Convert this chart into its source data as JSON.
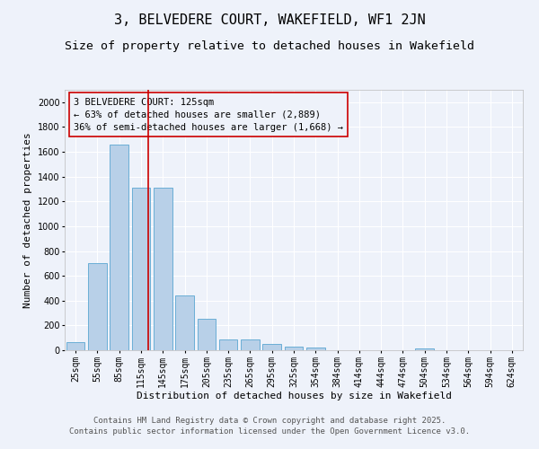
{
  "title": "3, BELVEDERE COURT, WAKEFIELD, WF1 2JN",
  "subtitle": "Size of property relative to detached houses in Wakefield",
  "xlabel": "Distribution of detached houses by size in Wakefield",
  "ylabel": "Number of detached properties",
  "footer_line1": "Contains HM Land Registry data © Crown copyright and database right 2025.",
  "footer_line2": "Contains public sector information licensed under the Open Government Licence v3.0.",
  "categories": [
    "25sqm",
    "55sqm",
    "85sqm",
    "115sqm",
    "145sqm",
    "175sqm",
    "205sqm",
    "235sqm",
    "265sqm",
    "295sqm",
    "325sqm",
    "354sqm",
    "384sqm",
    "414sqm",
    "444sqm",
    "474sqm",
    "504sqm",
    "534sqm",
    "564sqm",
    "594sqm",
    "624sqm"
  ],
  "values": [
    65,
    700,
    1660,
    1310,
    1310,
    445,
    250,
    90,
    90,
    50,
    30,
    25,
    0,
    0,
    0,
    0,
    18,
    0,
    0,
    0,
    0
  ],
  "bar_color": "#b8d0e8",
  "bar_edge_color": "#6aaed6",
  "background_color": "#eef2fa",
  "grid_color": "#ffffff",
  "annotation_box_color": "#cc0000",
  "vline_color": "#cc0000",
  "property_label": "3 BELVEDERE COURT: 125sqm",
  "annotation_line1": "← 63% of detached houses are smaller (2,889)",
  "annotation_line2": "36% of semi-detached houses are larger (1,668) →",
  "vline_pos": 3.333,
  "ylim_max": 2100,
  "yticks": [
    0,
    200,
    400,
    600,
    800,
    1000,
    1200,
    1400,
    1600,
    1800,
    2000
  ],
  "title_fontsize": 11,
  "subtitle_fontsize": 9.5,
  "axis_label_fontsize": 8,
  "tick_fontsize": 7,
  "annotation_fontsize": 7.5,
  "footer_fontsize": 6.5
}
